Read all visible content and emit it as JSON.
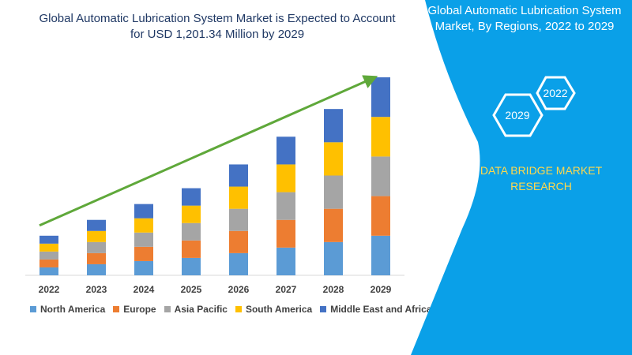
{
  "header": {
    "title": "Global Automatic Lubrication System Market is Expected to Account for USD 1,201.34 Million by 2029"
  },
  "panel": {
    "title": "Global Automatic Lubrication System Market, By Regions, 2022 to 2029",
    "hex_top": "2022",
    "hex_bottom": "2029",
    "brand": "DATA BRIDGE MARKET RESEARCH",
    "bg_color": "#0aa0e8"
  },
  "chart_data": {
    "type": "bar",
    "stacked": true,
    "categories": [
      "2022",
      "2023",
      "2024",
      "2025",
      "2026",
      "2027",
      "2028",
      "2029"
    ],
    "series": [
      {
        "name": "North America",
        "color": "#5b9bd5",
        "values": [
          10,
          14,
          18,
          22,
          28,
          35,
          42,
          50
        ]
      },
      {
        "name": "Europe",
        "color": "#ed7d31",
        "values": [
          10,
          14,
          18,
          22,
          28,
          35,
          42,
          50
        ]
      },
      {
        "name": "Asia Pacific",
        "color": "#a5a5a5",
        "values": [
          10,
          14,
          18,
          22,
          28,
          35,
          42,
          50
        ]
      },
      {
        "name": "South America",
        "color": "#ffc000",
        "values": [
          10,
          14,
          18,
          22,
          28,
          35,
          42,
          50
        ]
      },
      {
        "name": "Middle East and Africa",
        "color": "#4472c4",
        "values": [
          10,
          14,
          18,
          22,
          28,
          35,
          42,
          50
        ]
      }
    ],
    "ylim": [
      0,
      250
    ],
    "trend_arrow": true,
    "legend_position": "bottom"
  }
}
